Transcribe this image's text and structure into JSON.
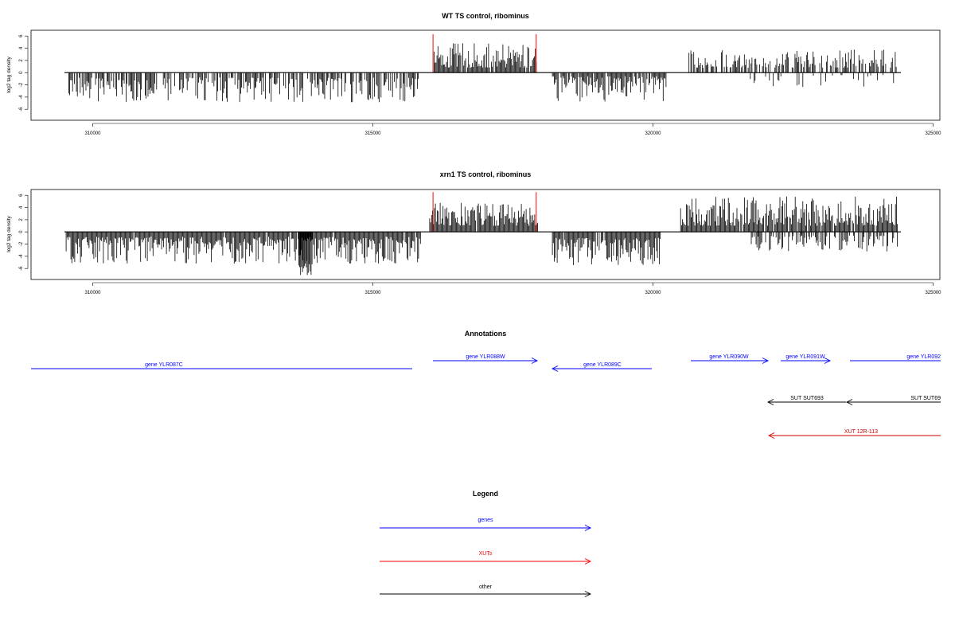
{
  "chart_data": [
    {
      "type": "bar",
      "title": "WT TS control, ribominus",
      "ylabel": "log2 tag density",
      "xlabel": "",
      "xlim": [
        308900,
        325200
      ],
      "ylim": [
        -7.5,
        7
      ],
      "x_ticks": [
        310000,
        315000,
        320000,
        325000
      ],
      "x_tick_labels": [
        "310000",
        "315000",
        "320000",
        "325000"
      ],
      "y_ticks": [
        -6,
        -4,
        -2,
        0,
        2,
        4,
        6
      ],
      "y_tick_labels": [
        "-6",
        "-4",
        "-2",
        "0",
        "2",
        "4",
        "6"
      ],
      "baseline_range": [
        309500,
        324500
      ],
      "highlight_color": "#ff0000",
      "highlights": [
        {
          "x": 316110,
          "y": 6.3
        },
        {
          "x": 317960,
          "y": 6.3
        }
      ],
      "segments": [
        {
          "start": 309560,
          "end": 315850,
          "sign": -1,
          "min": 0.8,
          "max": 4.9,
          "density": 0.68
        },
        {
          "start": 316130,
          "end": 317970,
          "sign": 1,
          "min": 0.8,
          "max": 4.8,
          "density": 0.95
        },
        {
          "start": 318250,
          "end": 320300,
          "sign": -1,
          "min": 0.6,
          "max": 4.8,
          "density": 0.9
        },
        {
          "start": 320700,
          "end": 324450,
          "sign": 1,
          "min": 0.8,
          "max": 3.8,
          "density": 0.55
        },
        {
          "start": 321800,
          "end": 324400,
          "sign": -1,
          "min": 0.4,
          "max": 2.4,
          "density": 0.18
        }
      ]
    },
    {
      "type": "bar",
      "title": "xrn1 TS control, ribominus",
      "ylabel": "log2 tag density",
      "xlabel": "",
      "xlim": [
        308900,
        325200
      ],
      "ylim": [
        -7.5,
        7
      ],
      "x_ticks": [
        310000,
        315000,
        320000,
        325000
      ],
      "x_tick_labels": [
        "310000",
        "315000",
        "320000",
        "325000"
      ],
      "y_ticks": [
        -6,
        -4,
        -2,
        0,
        2,
        4,
        6
      ],
      "y_tick_labels": [
        "-6",
        "-4",
        "-2",
        "0",
        "2",
        "4",
        "6"
      ],
      "baseline_range": [
        309500,
        324500
      ],
      "highlight_color": "#ff0000",
      "highlights": [
        {
          "x": 316110,
          "y": 6.5
        },
        {
          "x": 317960,
          "y": 6.5
        }
      ],
      "segments": [
        {
          "start": 309530,
          "end": 315900,
          "sign": -1,
          "min": 0.8,
          "max": 5.2,
          "density": 0.95
        },
        {
          "start": 313700,
          "end": 313950,
          "sign": -1,
          "min": 5.0,
          "max": 7.3,
          "density": 1.0
        },
        {
          "start": 316050,
          "end": 318000,
          "sign": 1,
          "min": 1.0,
          "max": 4.8,
          "density": 0.98
        },
        {
          "start": 318250,
          "end": 320200,
          "sign": -1,
          "min": 1.0,
          "max": 5.5,
          "density": 0.95
        },
        {
          "start": 320550,
          "end": 324450,
          "sign": 1,
          "min": 1.0,
          "max": 5.8,
          "density": 0.95
        },
        {
          "start": 321800,
          "end": 324450,
          "sign": -1,
          "min": 0.6,
          "max": 3.2,
          "density": 0.55
        }
      ]
    }
  ],
  "annotations": {
    "title": "Annotations",
    "features": [
      {
        "label": "gene YLR087C",
        "color": "#0000ff"
      },
      {
        "label": "gene YLR088W",
        "color": "#0000ff"
      },
      {
        "label": "gene YLR089C",
        "color": "#0000ff"
      },
      {
        "label": "gene YLR090W",
        "color": "#0000ff"
      },
      {
        "label": "gene YLR091W",
        "color": "#0000ff"
      },
      {
        "label": "gene YLR092",
        "color": "#0000ff"
      },
      {
        "label": "SUT SUT693",
        "color": "#000000"
      },
      {
        "label": "SUT SUT69",
        "color": "#000000"
      },
      {
        "label": "XUT 12R-113",
        "color": "#cc0000"
      }
    ]
  },
  "legend": {
    "title": "Legend",
    "items": [
      {
        "label": "genes",
        "color": "#0000ff"
      },
      {
        "label": "XUTs",
        "color": "#ff0000"
      },
      {
        "label": "other",
        "color": "#000000"
      }
    ]
  }
}
